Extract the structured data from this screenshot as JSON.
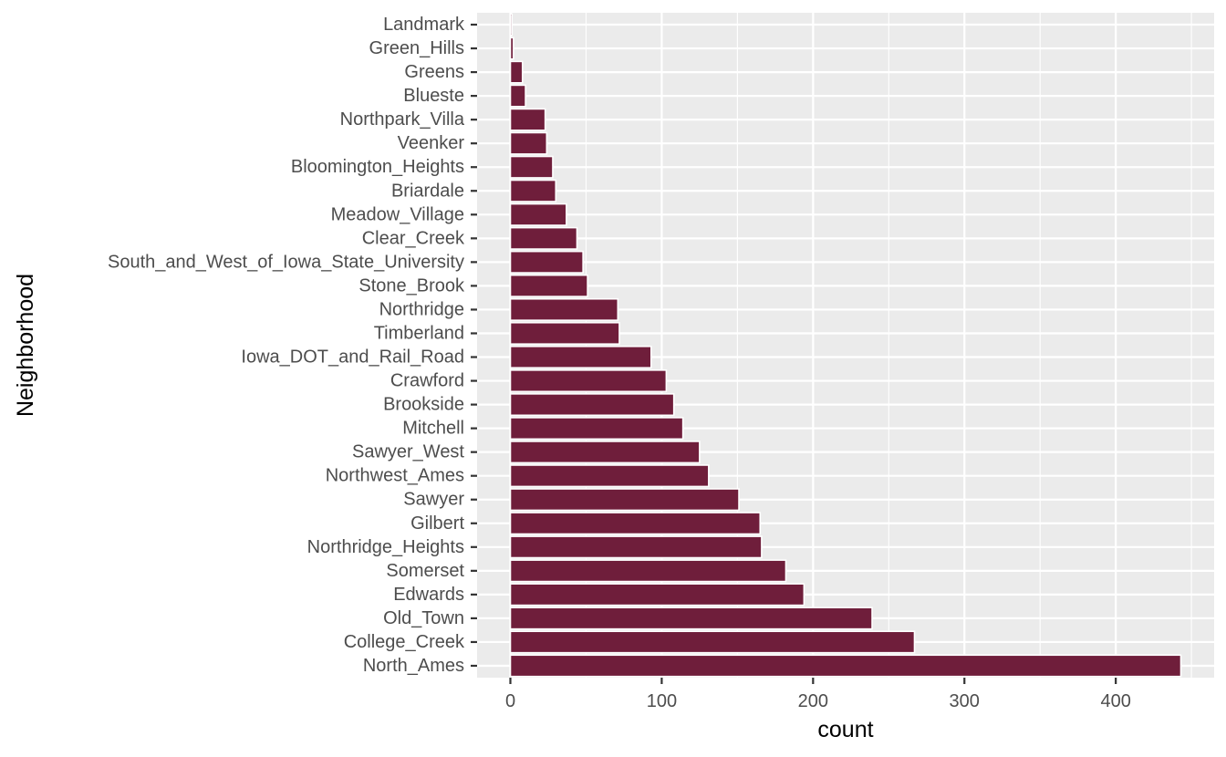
{
  "chart_data": {
    "type": "bar",
    "orientation": "horizontal",
    "title": "",
    "xlabel": "count",
    "ylabel": "Neighborhood",
    "xlim": [
      -22,
      465
    ],
    "x_ticks": [
      0,
      100,
      200,
      300,
      400
    ],
    "grid": true,
    "legend": "none",
    "bar_color": "#6f1e3b",
    "bar_outline_color": "#ffffff",
    "panel_background": "#ebebeb",
    "gridline_color": "#ffffff",
    "categories": [
      "Landmark",
      "Green_Hills",
      "Greens",
      "Blueste",
      "Northpark_Villa",
      "Veenker",
      "Bloomington_Heights",
      "Briardale",
      "Meadow_Village",
      "Clear_Creek",
      "South_and_West_of_Iowa_State_University",
      "Stone_Brook",
      "Northridge",
      "Timberland",
      "Iowa_DOT_and_Rail_Road",
      "Crawford",
      "Brookside",
      "Mitchell",
      "Sawyer_West",
      "Northwest_Ames",
      "Sawyer",
      "Gilbert",
      "Northridge_Heights",
      "Somerset",
      "Edwards",
      "Old_Town",
      "College_Creek",
      "North_Ames"
    ],
    "values": [
      1,
      2,
      8,
      10,
      23,
      24,
      28,
      30,
      37,
      44,
      48,
      51,
      71,
      72,
      93,
      103,
      108,
      114,
      125,
      131,
      151,
      165,
      166,
      182,
      194,
      239,
      267,
      443
    ]
  }
}
